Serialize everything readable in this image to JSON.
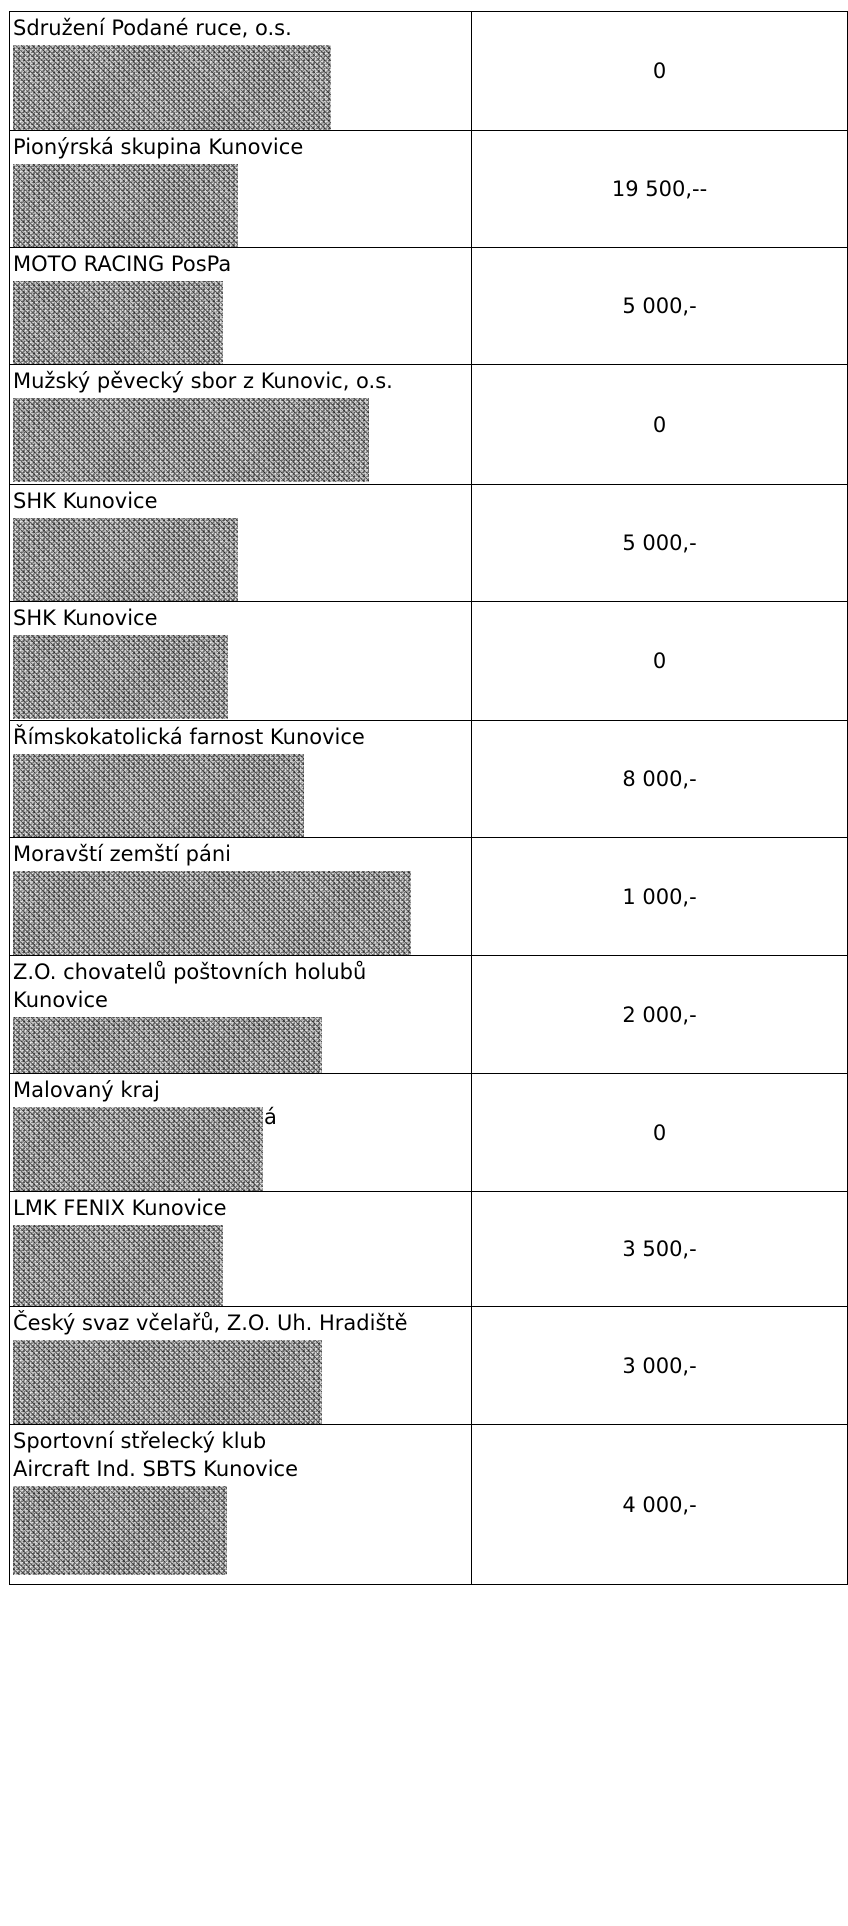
{
  "rows": [
    {
      "name": "Sdružení Podané ruce, o.s.",
      "amount": "0"
    },
    {
      "name": "Pionýrská skupina Kunovice",
      "amount": "19 500,--"
    },
    {
      "name": "MOTO RACING PosPa",
      "amount": "5 000,-"
    },
    {
      "name": "Mužský pěvecký sbor z Kunovic, o.s.",
      "amount": "0"
    },
    {
      "name": "SHK Kunovice",
      "amount": "5 000,-"
    },
    {
      "name": "SHK Kunovice",
      "amount": "0"
    },
    {
      "name": "Římskokatolická farnost Kunovice",
      "amount": "8 000,-"
    },
    {
      "name": "Moravští zemští páni",
      "amount": "1 000,-"
    },
    {
      "name": "Z.O. chovatelů poštovních holubů\nKunovice",
      "amount": "2 000,-"
    },
    {
      "name": "Malovaný kraj",
      "amount": "0",
      "stray_mark": "á"
    },
    {
      "name": "LMK FENIX Kunovice",
      "amount": "3 500,-"
    },
    {
      "name": "Český svaz včelařů, Z.O. Uh. Hradiště",
      "amount": "3 000,-"
    },
    {
      "name": "Sportovní střelecký klub\nAircraft Ind. SBTS Kunovice",
      "amount": "4 000,-"
    }
  ]
}
